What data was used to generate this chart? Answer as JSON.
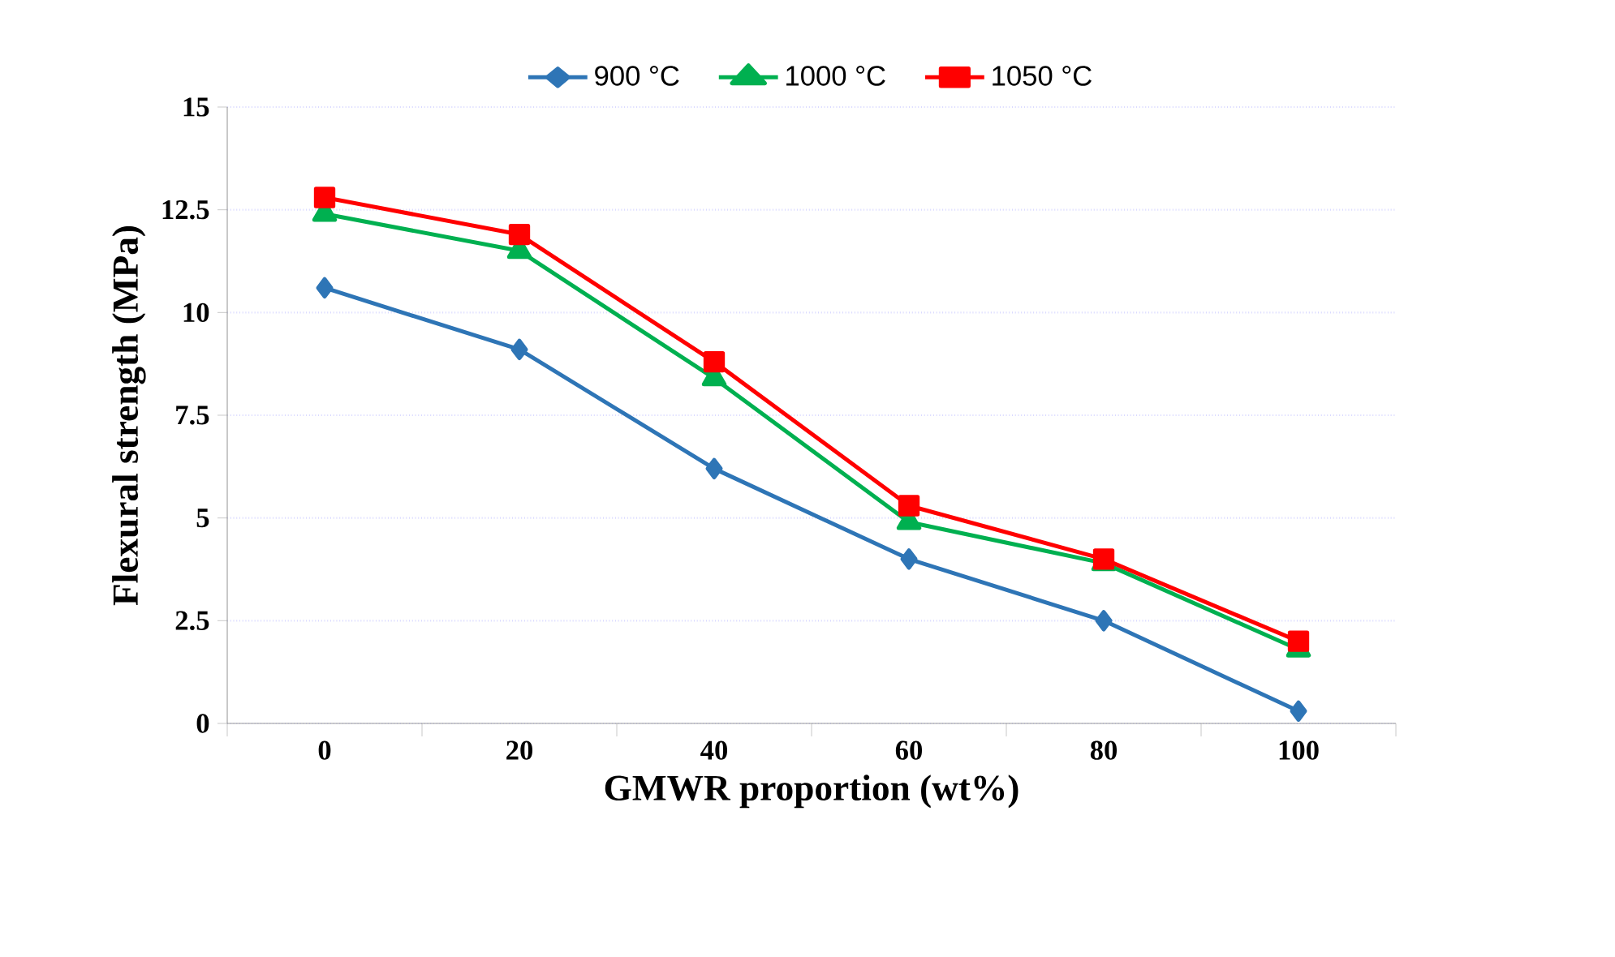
{
  "chart_data": {
    "type": "line",
    "xlabel": "GMWR proportion  (wt%)",
    "ylabel": "Flexural  strength (MPa)",
    "categories": [
      "0",
      "20",
      "40",
      "60",
      "80",
      "100"
    ],
    "series": [
      {
        "name": "900 °C",
        "color": "#2e75b6",
        "marker": "diamond",
        "values": [
          10.6,
          9.1,
          6.2,
          4.0,
          2.5,
          0.3
        ]
      },
      {
        "name": "1000 °C",
        "color": "#00b050",
        "marker": "triangle",
        "values": [
          12.4,
          11.5,
          8.4,
          4.9,
          3.9,
          1.8
        ]
      },
      {
        "name": "1050 °C",
        "color": "#ff0000",
        "marker": "square",
        "values": [
          12.8,
          11.9,
          8.8,
          5.3,
          4.0,
          2.0
        ]
      }
    ],
    "ylim": [
      0,
      15
    ],
    "yticks": [
      0,
      2.5,
      5,
      7.5,
      10,
      12.5,
      15
    ],
    "grid": "y",
    "legend": "top",
    "line_style": "solid"
  }
}
